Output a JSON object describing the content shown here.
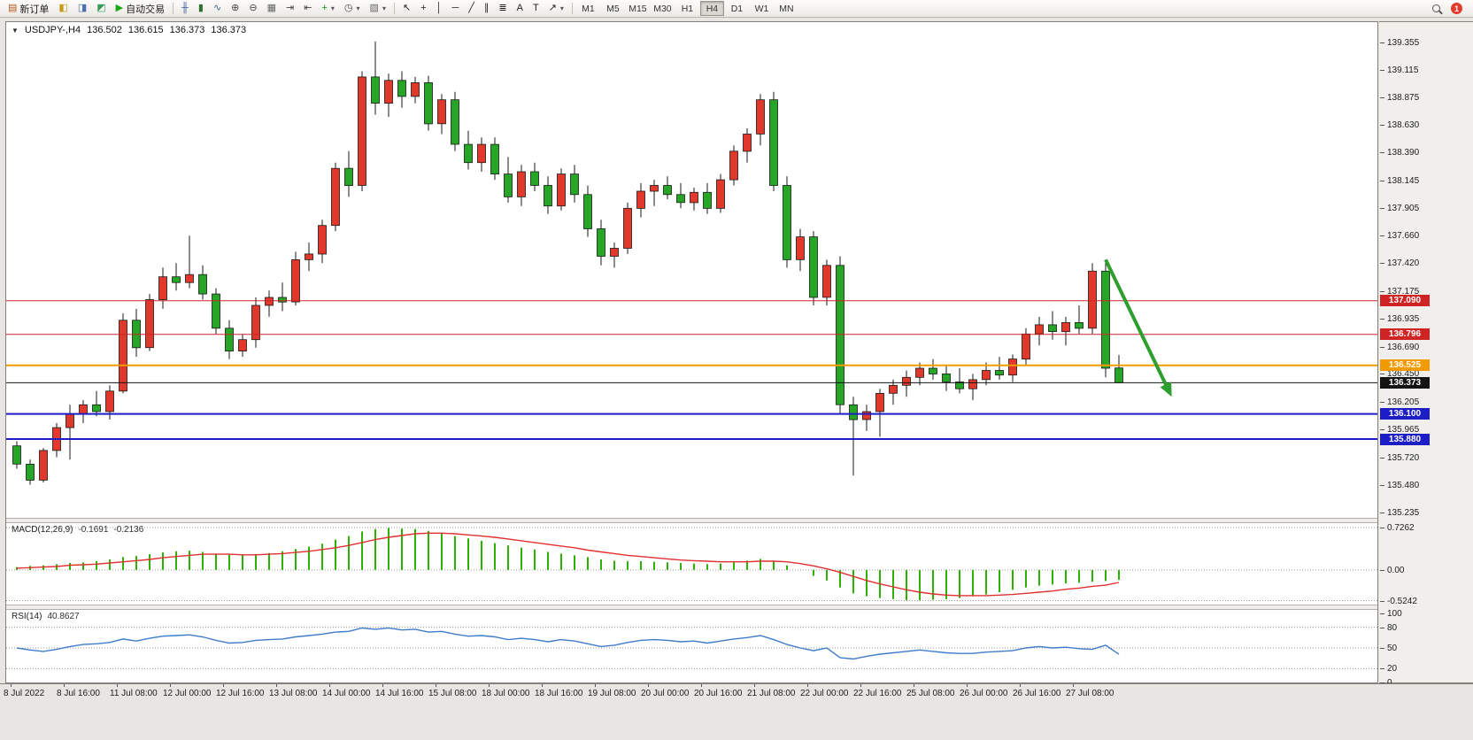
{
  "toolbar": {
    "groups": [
      {
        "items": [
          {
            "name": "new-order-button",
            "label": "新订单",
            "icon": {
              "name": "order-sheet-icon",
              "glyph": "▤",
              "color": "#b3541e"
            }
          },
          {
            "name": "market-watch-button",
            "icon": {
              "name": "market-watch-icon",
              "glyph": "◧",
              "color": "#c59a18"
            }
          },
          {
            "name": "data-window-button",
            "icon": {
              "name": "data-window-icon",
              "glyph": "◨",
              "color": "#4a6fb5"
            }
          },
          {
            "name": "navigator-button",
            "icon": {
              "name": "navigator-icon",
              "glyph": "◩",
              "color": "#3a9a5c"
            }
          },
          {
            "name": "autotrading-button",
            "label": "自动交易",
            "icon": {
              "name": "autotrading-play-icon",
              "glyph": "▶",
              "color": "#17a817"
            }
          }
        ]
      },
      {
        "items": [
          {
            "name": "bar-chart-button",
            "icon": {
              "name": "bar-chart-icon",
              "glyph": "╫",
              "color": "#3f5f8f"
            }
          },
          {
            "name": "candlestick-chart-button",
            "icon": {
              "name": "candlestick-chart-icon",
              "glyph": "▮",
              "color": "#2f6f2f"
            }
          },
          {
            "name": "line-chart-button",
            "icon": {
              "name": "line-chart-icon",
              "glyph": "∿",
              "color": "#3f5f8f"
            }
          },
          {
            "name": "zoom-in-button",
            "icon": {
              "name": "zoom-in-icon",
              "glyph": "⊕",
              "color": "#444444"
            }
          },
          {
            "name": "zoom-out-button",
            "icon": {
              "name": "zoom-out-icon",
              "glyph": "⊖",
              "color": "#444444"
            }
          },
          {
            "name": "tile-windows-button",
            "icon": {
              "name": "tile-windows-icon",
              "glyph": "▦",
              "color": "#666666"
            }
          },
          {
            "name": "auto-scroll-button",
            "icon": {
              "name": "auto-scroll-icon",
              "glyph": "⇥",
              "color": "#444444"
            }
          },
          {
            "name": "chart-shift-button",
            "icon": {
              "name": "chart-shift-icon",
              "glyph": "⇤",
              "color": "#444444"
            }
          },
          {
            "name": "indicators-button",
            "icon": {
              "name": "indicators-icon",
              "glyph": "+",
              "color": "#1a8a1a"
            },
            "dropdown": true
          },
          {
            "name": "periods-button",
            "icon": {
              "name": "periods-icon",
              "glyph": "◷",
              "color": "#444444"
            },
            "dropdown": true
          },
          {
            "name": "templates-button",
            "icon": {
              "name": "templates-icon",
              "glyph": "▧",
              "color": "#666666"
            },
            "dropdown": true
          }
        ]
      },
      {
        "items": [
          {
            "name": "cursor-button",
            "icon": {
              "name": "cursor-icon",
              "glyph": "↖",
              "color": "#222222"
            }
          },
          {
            "name": "crosshair-button",
            "icon": {
              "name": "crosshair-icon",
              "glyph": "+",
              "color": "#222222"
            }
          },
          {
            "name": "vertical-line-button",
            "icon": {
              "name": "vertical-line-icon",
              "glyph": "│",
              "color": "#222222"
            }
          },
          {
            "name": "horizontal-line-button",
            "icon": {
              "name": "horizontal-line-icon",
              "glyph": "─",
              "color": "#222222"
            }
          },
          {
            "name": "trendline-button",
            "icon": {
              "name": "trendline-icon",
              "glyph": "╱",
              "color": "#222222"
            }
          },
          {
            "name": "channel-button",
            "icon": {
              "name": "channel-icon",
              "glyph": "∥",
              "color": "#222222"
            }
          },
          {
            "name": "fibonacci-button",
            "icon": {
              "name": "fibonacci-icon",
              "glyph": "≣",
              "color": "#222222"
            }
          },
          {
            "name": "text-button",
            "icon": {
              "name": "text-icon",
              "glyph": "A",
              "color": "#222222"
            }
          },
          {
            "name": "label-button",
            "icon": {
              "name": "label-icon",
              "glyph": "T",
              "color": "#222222"
            }
          },
          {
            "name": "arrows-button",
            "icon": {
              "name": "arrows-icon",
              "glyph": "↗",
              "color": "#222222"
            },
            "dropdown": true
          }
        ]
      }
    ],
    "timeframes": {
      "items": [
        "M1",
        "M5",
        "M15",
        "M30",
        "H1",
        "H4",
        "D1",
        "W1",
        "MN"
      ],
      "active": "H4"
    },
    "notification_count": "1"
  },
  "chart": {
    "collapse_glyph": "▼",
    "title": "USDJPY-,H4",
    "ohlc": {
      "open": "136.502",
      "high": "136.615",
      "low": "136.373",
      "close": "136.373"
    }
  },
  "chart_data": {
    "type": "candlestick",
    "symbol": "USDJPY-",
    "timeframe": "H4",
    "colors": {
      "bull": "#e0382a",
      "bear": "#26a526",
      "wick": "#1a1a1a",
      "candle_border": "#1a1a1a"
    },
    "price_axis_ticks": [
      "139.355",
      "139.115",
      "138.875",
      "138.630",
      "138.390",
      "138.145",
      "137.905",
      "137.660",
      "137.420",
      "137.175",
      "136.935",
      "136.690",
      "136.450",
      "136.205",
      "135.965",
      "135.720",
      "135.480",
      "135.235"
    ],
    "time_labels": [
      "8 Jul 2022",
      "8 Jul 16:00",
      "11 Jul 08:00",
      "12 Jul 00:00",
      "12 Jul 16:00",
      "13 Jul 08:00",
      "14 Jul 00:00",
      "14 Jul 16:00",
      "15 Jul 08:00",
      "18 Jul 00:00",
      "18 Jul 16:00",
      "19 Jul 08:00",
      "20 Jul 00:00",
      "20 Jul 16:00",
      "21 Jul 08:00",
      "22 Jul 00:00",
      "22 Jul 16:00",
      "25 Jul 08:00",
      "26 Jul 00:00",
      "26 Jul 16:00",
      "27 Jul 08:00"
    ],
    "candles": [
      [
        135.82,
        135.86,
        135.62,
        135.66
      ],
      [
        135.66,
        135.7,
        135.48,
        135.52
      ],
      [
        135.52,
        135.8,
        135.5,
        135.78
      ],
      [
        135.78,
        136.02,
        135.72,
        135.98
      ],
      [
        135.98,
        136.18,
        135.7,
        136.1
      ],
      [
        136.1,
        136.22,
        136.02,
        136.18
      ],
      [
        136.18,
        136.3,
        136.08,
        136.12
      ],
      [
        136.12,
        136.35,
        136.05,
        136.3
      ],
      [
        136.3,
        136.98,
        136.28,
        136.92
      ],
      [
        136.92,
        137.02,
        136.6,
        136.68
      ],
      [
        136.68,
        137.15,
        136.65,
        137.1
      ],
      [
        137.1,
        137.38,
        137.02,
        137.3
      ],
      [
        137.3,
        137.42,
        137.18,
        137.25
      ],
      [
        137.25,
        137.66,
        137.2,
        137.32
      ],
      [
        137.32,
        137.4,
        137.1,
        137.15
      ],
      [
        137.15,
        137.2,
        136.8,
        136.85
      ],
      [
        136.85,
        136.92,
        136.58,
        136.65
      ],
      [
        136.65,
        136.8,
        136.6,
        136.75
      ],
      [
        136.75,
        137.12,
        136.68,
        137.05
      ],
      [
        137.05,
        137.18,
        136.95,
        137.12
      ],
      [
        137.12,
        137.25,
        137.0,
        137.08
      ],
      [
        137.08,
        137.52,
        137.05,
        137.45
      ],
      [
        137.45,
        137.6,
        137.35,
        137.5
      ],
      [
        137.5,
        137.8,
        137.42,
        137.75
      ],
      [
        137.75,
        138.3,
        137.7,
        138.25
      ],
      [
        138.25,
        138.4,
        138.0,
        138.1
      ],
      [
        138.1,
        139.1,
        138.05,
        139.05
      ],
      [
        139.05,
        139.36,
        138.72,
        138.82
      ],
      [
        138.82,
        139.08,
        138.7,
        139.02
      ],
      [
        139.02,
        139.1,
        138.78,
        138.88
      ],
      [
        138.88,
        139.05,
        138.82,
        139.0
      ],
      [
        139.0,
        139.06,
        138.58,
        138.64
      ],
      [
        138.64,
        138.9,
        138.55,
        138.85
      ],
      [
        138.85,
        138.92,
        138.4,
        138.46
      ],
      [
        138.46,
        138.58,
        138.24,
        138.3
      ],
      [
        138.3,
        138.52,
        138.22,
        138.46
      ],
      [
        138.46,
        138.52,
        138.15,
        138.2
      ],
      [
        138.2,
        138.35,
        137.95,
        138.0
      ],
      [
        138.0,
        138.28,
        137.92,
        138.22
      ],
      [
        138.22,
        138.3,
        138.05,
        138.1
      ],
      [
        138.1,
        138.18,
        137.85,
        137.92
      ],
      [
        137.92,
        138.25,
        137.88,
        138.2
      ],
      [
        138.2,
        138.28,
        137.95,
        138.02
      ],
      [
        138.02,
        138.1,
        137.65,
        137.72
      ],
      [
        137.72,
        137.8,
        137.4,
        137.48
      ],
      [
        137.48,
        137.6,
        137.38,
        137.55
      ],
      [
        137.55,
        137.95,
        137.5,
        137.9
      ],
      [
        137.9,
        138.12,
        137.82,
        138.05
      ],
      [
        138.05,
        138.15,
        137.92,
        138.1
      ],
      [
        138.1,
        138.18,
        137.98,
        138.02
      ],
      [
        138.02,
        138.12,
        137.9,
        137.95
      ],
      [
        137.95,
        138.08,
        137.88,
        138.04
      ],
      [
        138.04,
        138.12,
        137.85,
        137.9
      ],
      [
        137.9,
        138.2,
        137.86,
        138.15
      ],
      [
        138.15,
        138.45,
        138.1,
        138.4
      ],
      [
        138.4,
        138.6,
        138.3,
        138.55
      ],
      [
        138.55,
        138.9,
        138.45,
        138.85
      ],
      [
        138.85,
        138.92,
        138.05,
        138.1
      ],
      [
        138.1,
        138.18,
        137.38,
        137.45
      ],
      [
        137.45,
        137.72,
        137.35,
        137.65
      ],
      [
        137.65,
        137.7,
        137.05,
        137.12
      ],
      [
        137.12,
        137.45,
        137.05,
        137.4
      ],
      [
        137.4,
        137.48,
        136.1,
        136.18
      ],
      [
        136.18,
        136.25,
        135.56,
        136.05
      ],
      [
        136.05,
        136.18,
        135.95,
        136.12
      ],
      [
        136.12,
        136.32,
        135.9,
        136.28
      ],
      [
        136.28,
        136.4,
        136.18,
        136.35
      ],
      [
        136.35,
        136.48,
        136.25,
        136.42
      ],
      [
        136.42,
        136.55,
        136.35,
        136.5
      ],
      [
        136.5,
        136.58,
        136.4,
        136.45
      ],
      [
        136.45,
        136.52,
        136.3,
        136.38
      ],
      [
        136.38,
        136.5,
        136.28,
        136.32
      ],
      [
        136.32,
        136.45,
        136.22,
        136.4
      ],
      [
        136.4,
        136.55,
        136.35,
        136.48
      ],
      [
        136.48,
        136.6,
        136.4,
        136.44
      ],
      [
        136.44,
        136.62,
        136.38,
        136.58
      ],
      [
        136.58,
        136.85,
        136.52,
        136.8
      ],
      [
        136.8,
        136.95,
        136.7,
        136.88
      ],
      [
        136.88,
        137.0,
        136.75,
        136.82
      ],
      [
        136.82,
        136.95,
        136.7,
        136.9
      ],
      [
        136.9,
        137.05,
        136.8,
        136.85
      ],
      [
        136.85,
        137.42,
        136.8,
        137.35
      ],
      [
        137.35,
        137.45,
        136.42,
        136.5
      ],
      [
        136.502,
        136.615,
        136.373,
        136.373
      ]
    ],
    "hlines": [
      {
        "price": 137.09,
        "label": "137.090",
        "color": "#d02323",
        "width": 1
      },
      {
        "price": 136.796,
        "label": "136.796",
        "color": "#d02323",
        "width": 1
      },
      {
        "price": 136.525,
        "label": "136.525",
        "color": "#f29b00",
        "width": 2
      },
      {
        "price": 136.373,
        "label": "136.373",
        "color": "#141414",
        "width": 1,
        "current": true
      },
      {
        "price": 136.1,
        "label": "136.100",
        "color": "#1d1dc8",
        "width": 2
      },
      {
        "price": 135.88,
        "label": "135.880",
        "color": "#1d1dc8",
        "width": 2
      }
    ],
    "annotation_arrow": {
      "from": {
        "bar": 82,
        "price": 137.45
      },
      "to": {
        "bar": 86.6,
        "price": 136.34
      },
      "color": "#2e9e2e"
    },
    "indicators": {
      "macd": {
        "label": "MACD(12,26,9)",
        "value_main": "-0.1691",
        "value_signal": "-0.2136",
        "scale_labels": [
          "0.7262",
          "0.00",
          "-0.5242"
        ],
        "histogram_color": "#2db200",
        "signal_color": "#e03030",
        "histogram": [
          0.05,
          0.07,
          0.08,
          0.1,
          0.12,
          0.13,
          0.15,
          0.18,
          0.22,
          0.24,
          0.27,
          0.3,
          0.32,
          0.33,
          0.31,
          0.28,
          0.26,
          0.25,
          0.27,
          0.29,
          0.32,
          0.36,
          0.4,
          0.45,
          0.52,
          0.58,
          0.66,
          0.7,
          0.72,
          0.71,
          0.7,
          0.67,
          0.63,
          0.58,
          0.54,
          0.5,
          0.46,
          0.42,
          0.38,
          0.35,
          0.31,
          0.28,
          0.25,
          0.22,
          0.18,
          0.16,
          0.15,
          0.15,
          0.14,
          0.13,
          0.12,
          0.11,
          0.1,
          0.11,
          0.13,
          0.16,
          0.19,
          0.16,
          0.08,
          0.0,
          -0.1,
          -0.18,
          -0.3,
          -0.4,
          -0.45,
          -0.48,
          -0.5,
          -0.52,
          -0.52,
          -0.51,
          -0.5,
          -0.48,
          -0.45,
          -0.42,
          -0.38,
          -0.34,
          -0.3,
          -0.27,
          -0.25,
          -0.23,
          -0.22,
          -0.2,
          -0.19,
          -0.1691
        ],
        "signal": [
          0.03,
          0.04,
          0.05,
          0.06,
          0.08,
          0.09,
          0.1,
          0.12,
          0.14,
          0.16,
          0.18,
          0.21,
          0.23,
          0.25,
          0.27,
          0.27,
          0.27,
          0.26,
          0.26,
          0.27,
          0.28,
          0.3,
          0.32,
          0.35,
          0.38,
          0.42,
          0.47,
          0.52,
          0.56,
          0.59,
          0.62,
          0.63,
          0.63,
          0.62,
          0.6,
          0.58,
          0.56,
          0.53,
          0.5,
          0.47,
          0.44,
          0.41,
          0.38,
          0.34,
          0.31,
          0.28,
          0.25,
          0.23,
          0.21,
          0.19,
          0.17,
          0.16,
          0.15,
          0.14,
          0.14,
          0.14,
          0.15,
          0.15,
          0.14,
          0.11,
          0.07,
          0.02,
          -0.04,
          -0.11,
          -0.18,
          -0.24,
          -0.29,
          -0.34,
          -0.38,
          -0.41,
          -0.43,
          -0.44,
          -0.44,
          -0.44,
          -0.43,
          -0.42,
          -0.4,
          -0.38,
          -0.36,
          -0.33,
          -0.31,
          -0.28,
          -0.26,
          -0.2136
        ]
      },
      "rsi": {
        "label": "RSI(14)",
        "value": "40.8627",
        "color": "#3f7cc9",
        "scale_labels": [
          "100",
          "80",
          "50",
          "20",
          "0"
        ],
        "level_lines": [
          80,
          50,
          20
        ],
        "series": [
          50,
          47,
          45,
          48,
          52,
          55,
          56,
          58,
          63,
          60,
          64,
          67,
          68,
          69,
          66,
          61,
          57,
          58,
          61,
          62,
          63,
          66,
          68,
          70,
          73,
          74,
          79,
          77,
          79,
          76,
          77,
          73,
          74,
          70,
          67,
          68,
          66,
          62,
          64,
          62,
          59,
          62,
          60,
          56,
          52,
          54,
          58,
          61,
          62,
          61,
          59,
          60,
          57,
          60,
          63,
          65,
          68,
          62,
          55,
          50,
          46,
          50,
          36,
          34,
          38,
          41,
          43,
          45,
          47,
          45,
          43,
          42,
          42,
          44,
          45,
          46,
          50,
          52,
          50,
          51,
          49,
          48,
          54,
          40.86
        ]
      }
    }
  }
}
